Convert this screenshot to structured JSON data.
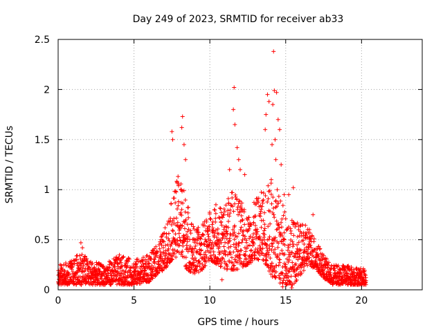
{
  "chart_data": {
    "type": "scatter",
    "title": "Day 249 of 2023, SRMTID for receiver ab33",
    "xlabel": "GPS time / hours",
    "ylabel": "SRMTID / TECUs",
    "xlim": [
      0,
      24
    ],
    "ylim": [
      0,
      2.5
    ],
    "xticks": [
      0,
      5,
      10,
      15,
      20
    ],
    "yticks": [
      0,
      0.5,
      1,
      1.5,
      2,
      2.5
    ],
    "xtick_labels": [
      "0",
      "5",
      "10",
      "15",
      "20"
    ],
    "ytick_labels": [
      "0",
      "0.5",
      "1",
      "1.5",
      "2",
      "2.5"
    ],
    "grid": true,
    "marker": "+",
    "series": [
      {
        "name": "SRMTID",
        "color": "#ff0000",
        "envelope": {
          "x": [
            0,
            1,
            1.5,
            2,
            3,
            3.5,
            4,
            5,
            6,
            6.5,
            7,
            7.5,
            8,
            8.5,
            9,
            9.5,
            10,
            10.5,
            11,
            11.5,
            12,
            12.5,
            13,
            13.5,
            14,
            14.5,
            15,
            15.5,
            16,
            16.5,
            17,
            17.5,
            18,
            19,
            20,
            20.3
          ],
          "low": [
            0.05,
            0.05,
            0.05,
            0.05,
            0.05,
            0.05,
            0.05,
            0.05,
            0.08,
            0.15,
            0.2,
            0.3,
            0.35,
            0.2,
            0.15,
            0.2,
            0.3,
            0.25,
            0.2,
            0.2,
            0.2,
            0.25,
            0.3,
            0.3,
            0.15,
            0.05,
            0.05,
            0.05,
            0.15,
            0.25,
            0.2,
            0.12,
            0.05,
            0.05,
            0.05,
            0.05
          ],
          "high": [
            0.25,
            0.3,
            0.4,
            0.3,
            0.25,
            0.3,
            0.35,
            0.3,
            0.35,
            0.45,
            0.6,
            0.9,
            1.2,
            0.9,
            0.6,
            0.65,
            0.8,
            0.8,
            0.9,
            1.0,
            0.9,
            0.75,
            0.9,
            1.0,
            1.1,
            1.0,
            0.8,
            0.7,
            0.65,
            0.65,
            0.5,
            0.35,
            0.25,
            0.25,
            0.22,
            0.2
          ]
        },
        "points_per_hour": 110,
        "outliers": [
          {
            "x": 7.5,
            "y": 1.58
          },
          {
            "x": 7.55,
            "y": 1.5
          },
          {
            "x": 8.2,
            "y": 1.73
          },
          {
            "x": 8.15,
            "y": 1.62
          },
          {
            "x": 8.3,
            "y": 1.45
          },
          {
            "x": 8.4,
            "y": 1.3
          },
          {
            "x": 10.4,
            "y": 0.85
          },
          {
            "x": 10.3,
            "y": 0.8
          },
          {
            "x": 11.3,
            "y": 1.2
          },
          {
            "x": 11.6,
            "y": 2.02
          },
          {
            "x": 11.55,
            "y": 1.8
          },
          {
            "x": 11.65,
            "y": 1.65
          },
          {
            "x": 11.8,
            "y": 1.42
          },
          {
            "x": 11.9,
            "y": 1.3
          },
          {
            "x": 12.0,
            "y": 1.2
          },
          {
            "x": 12.3,
            "y": 1.15
          },
          {
            "x": 13.8,
            "y": 1.95
          },
          {
            "x": 13.9,
            "y": 1.88
          },
          {
            "x": 13.7,
            "y": 1.75
          },
          {
            "x": 13.65,
            "y": 1.6
          },
          {
            "x": 14.2,
            "y": 2.38
          },
          {
            "x": 14.25,
            "y": 1.99
          },
          {
            "x": 14.4,
            "y": 1.97
          },
          {
            "x": 14.15,
            "y": 1.85
          },
          {
            "x": 14.5,
            "y": 1.7
          },
          {
            "x": 14.6,
            "y": 1.6
          },
          {
            "x": 14.3,
            "y": 1.5
          },
          {
            "x": 14.1,
            "y": 1.45
          },
          {
            "x": 14.35,
            "y": 1.3
          },
          {
            "x": 14.7,
            "y": 1.25
          },
          {
            "x": 14.05,
            "y": 1.1
          },
          {
            "x": 14.9,
            "y": 0.95
          },
          {
            "x": 15.5,
            "y": 1.02
          },
          {
            "x": 15.2,
            "y": 0.95
          },
          {
            "x": 1.5,
            "y": 0.47
          },
          {
            "x": 1.6,
            "y": 0.42
          },
          {
            "x": 16.8,
            "y": 0.75
          },
          {
            "x": 14.8,
            "y": 0.03
          },
          {
            "x": 15.4,
            "y": 0.02
          },
          {
            "x": 10.8,
            "y": 0.1
          }
        ]
      }
    ]
  }
}
